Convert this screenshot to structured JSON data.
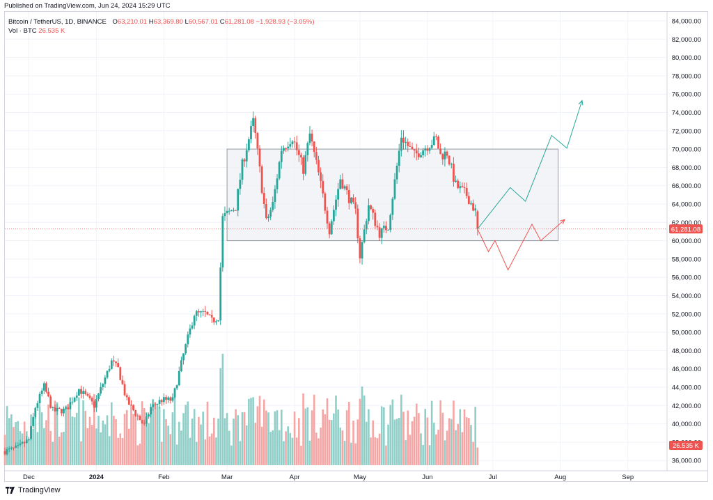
{
  "header": {
    "published": "Published on TradingView.com, Jun 24, 2024 15:29 UTC"
  },
  "legend": {
    "symbol": "Bitcoin / TetherUS, 1D, BINANCE",
    "o_label": "O",
    "o_value": "63,210.01",
    "h_label": "H",
    "h_value": "63,369.80",
    "l_label": "L",
    "l_value": "60,567.01",
    "c_label": "C",
    "c_value": "61,281.08",
    "change": "−1,928.93 (−3.05%)",
    "vol_label": "Vol · BTC",
    "vol_value": "26.535 K"
  },
  "footer": {
    "brand": "TradingView"
  },
  "colors": {
    "up": "#26a69a",
    "down": "#ef5350",
    "up_vol": "#8fcfc8",
    "down_vol": "#f5a6a4",
    "range_box": "#eeeff3"
  },
  "chart_data": {
    "type": "candlestick",
    "symbol": "BTCUSDT",
    "interval": "1D",
    "y_axis": {
      "min": 35000,
      "max": 85000,
      "ticks": [
        "84,000.00",
        "82,000.00",
        "80,000.00",
        "78,000.00",
        "76,000.00",
        "74,000.00",
        "72,000.00",
        "70,000.00",
        "68,000.00",
        "66,000.00",
        "64,000.00",
        "62,000.00",
        "60,000.00",
        "58,000.00",
        "56,000.00",
        "54,000.00",
        "52,000.00",
        "50,000.00",
        "48,000.00",
        "46,000.00",
        "44,000.00",
        "42,000.00",
        "40,000.00",
        "38,000.00",
        "36,000.00"
      ]
    },
    "x_axis": {
      "labels": [
        {
          "text": "Dec",
          "date": "2023-12-01"
        },
        {
          "text": "2024",
          "date": "2024-01-01",
          "bold": true
        },
        {
          "text": "Feb",
          "date": "2024-02-01"
        },
        {
          "text": "Mar",
          "date": "2024-03-01"
        },
        {
          "text": "Apr",
          "date": "2024-04-01"
        },
        {
          "text": "May",
          "date": "2024-05-01"
        },
        {
          "text": "Jun",
          "date": "2024-06-01"
        },
        {
          "text": "Jul",
          "date": "2024-07-01"
        },
        {
          "text": "Aug",
          "date": "2024-08-01"
        },
        {
          "text": "Sep",
          "date": "2024-09-01"
        }
      ],
      "start": "2023-11-20",
      "end": "2024-09-19"
    },
    "last_price": {
      "value": 61281.08,
      "label": "61,281.08"
    },
    "volume_label": "26.535 K",
    "range_box": {
      "from": "2024-03-01",
      "to": "2024-07-31",
      "top": 70000,
      "bottom": 60000
    },
    "projections": {
      "bullish": [
        [
          "2024-06-24",
          61281
        ],
        [
          "2024-07-09",
          65800
        ],
        [
          "2024-07-16",
          64300
        ],
        [
          "2024-07-28",
          71500
        ],
        [
          "2024-08-04",
          70100
        ],
        [
          "2024-08-11",
          75300
        ]
      ],
      "bearish": [
        [
          "2024-06-24",
          61281
        ],
        [
          "2024-06-29",
          58800
        ],
        [
          "2024-07-02",
          60000
        ],
        [
          "2024-07-08",
          56800
        ],
        [
          "2024-07-19",
          61800
        ],
        [
          "2024-07-23",
          60000
        ],
        [
          "2024-08-03",
          62300
        ]
      ]
    },
    "anchors": [
      [
        "2023-11-20",
        37000
      ],
      [
        "2023-11-26",
        37400
      ],
      [
        "2023-12-01",
        38300
      ],
      [
        "2023-12-04",
        41800
      ],
      [
        "2023-12-08",
        44100
      ],
      [
        "2023-12-12",
        41400
      ],
      [
        "2023-12-18",
        41500
      ],
      [
        "2023-12-24",
        43800
      ],
      [
        "2023-12-31",
        42000
      ],
      [
        "2024-01-08",
        46800
      ],
      [
        "2024-01-11",
        46000
      ],
      [
        "2024-01-15",
        42500
      ],
      [
        "2024-01-23",
        39800
      ],
      [
        "2024-01-26",
        41800
      ],
      [
        "2024-01-31",
        42600
      ],
      [
        "2024-02-05",
        42600
      ],
      [
        "2024-02-10",
        47600
      ],
      [
        "2024-02-15",
        52000
      ],
      [
        "2024-02-20",
        52000
      ],
      [
        "2024-02-23",
        51200
      ],
      [
        "2024-02-26",
        51700
      ],
      [
        "2024-02-28",
        62500
      ],
      [
        "2024-03-05",
        63700
      ],
      [
        "2024-03-08",
        68300
      ],
      [
        "2024-03-13",
        73000
      ],
      [
        "2024-03-14",
        71500
      ],
      [
        "2024-03-19",
        62000
      ],
      [
        "2024-03-22",
        64000
      ],
      [
        "2024-03-26",
        70000
      ],
      [
        "2024-03-31",
        71300
      ],
      [
        "2024-04-05",
        67800
      ],
      [
        "2024-04-08",
        71600
      ],
      [
        "2024-04-12",
        67300
      ],
      [
        "2024-04-17",
        61200
      ],
      [
        "2024-04-22",
        66800
      ],
      [
        "2024-04-29",
        63100
      ],
      [
        "2024-05-01",
        58300
      ],
      [
        "2024-05-05",
        63900
      ],
      [
        "2024-05-10",
        60800
      ],
      [
        "2024-05-14",
        61600
      ],
      [
        "2024-05-20",
        71400
      ],
      [
        "2024-05-26",
        69300
      ],
      [
        "2024-06-05",
        71100
      ],
      [
        "2024-06-07",
        69300
      ],
      [
        "2024-06-10",
        69600
      ],
      [
        "2024-06-14",
        66000
      ],
      [
        "2024-06-19",
        65000
      ],
      [
        "2024-06-23",
        63200
      ],
      [
        "2024-06-24",
        61281
      ]
    ],
    "series": [
      {
        "name": "Bitcoin / TetherUS, 1D, BINANCE",
        "type": "candles"
      },
      {
        "name": "Vol · BTC",
        "type": "volume"
      }
    ]
  }
}
